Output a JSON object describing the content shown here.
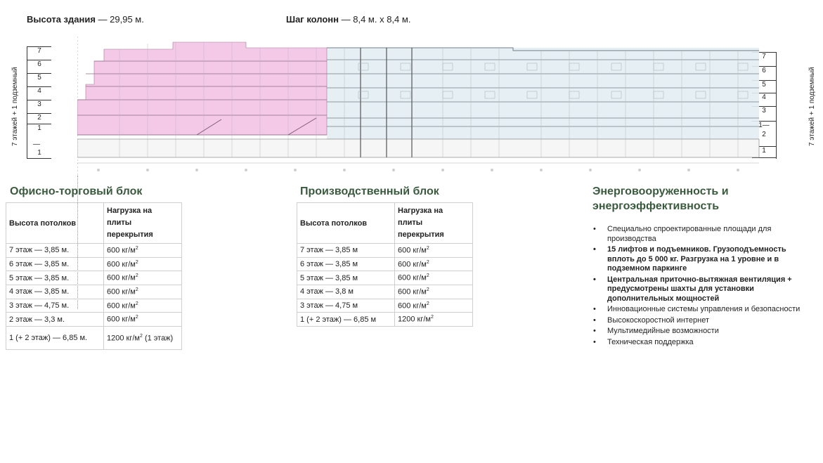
{
  "header": {
    "height_label": "Высота здания",
    "height_value": "— 29,95 м.",
    "column_label": "Шаг колонн",
    "column_value": "— 8,4 м. х 8,4 м."
  },
  "section": {
    "vertical_caption": "7 этажей + 1 подземный",
    "left_floors": [
      "7",
      "6",
      "5",
      "4",
      "3",
      "2",
      "1",
      "—",
      "1"
    ],
    "right_floors": [
      "7",
      "6",
      "5",
      "4",
      "3",
      "1—",
      "2",
      "1"
    ],
    "colors": {
      "office_zone": "#f2c6e6",
      "production_zone": "#dfeaf0",
      "line": "#7a7a7a"
    }
  },
  "office_block": {
    "title": "Офисно-торговый блок",
    "col1_header": "Высота потолков",
    "col2_header": "Нагрузка на плиты перекрытия",
    "rows": [
      {
        "floor": "7 этаж — 3,85 м.",
        "load": "600 кг/м",
        "sup": "2",
        "note": ""
      },
      {
        "floor": "6 этаж — 3,85 м.",
        "load": "600 кг/м",
        "sup": "2",
        "note": ""
      },
      {
        "floor": "5 этаж — 3,85 м.",
        "load": "600 кг/м",
        "sup": "2",
        "note": ""
      },
      {
        "floor": "4 этаж — 3,85 м.",
        "load": "600 кг/м",
        "sup": "2",
        "note": ""
      },
      {
        "floor": "3 этаж — 4,75 м.",
        "load": "600 кг/м",
        "sup": "2",
        "note": ""
      },
      {
        "floor": "2 этаж — 3,3 м.",
        "load": "600 кг/м",
        "sup": "2",
        "note": ""
      },
      {
        "floor": "1 (+ 2 этаж) — 6,85 м.",
        "load": "1200 кг/м",
        "sup": "2",
        "note": " (1 этаж)"
      }
    ]
  },
  "production_block": {
    "title": "Производственный блок",
    "col1_header": "Высота потолков",
    "col2_header": "Нагрузка на плиты перекрытия",
    "rows": [
      {
        "floor": "7 этаж — 3,85 м",
        "load": "600 кг/м",
        "sup": "2"
      },
      {
        "floor": "6 этаж — 3,85 м",
        "load": "600 кг/м",
        "sup": "2"
      },
      {
        "floor": "5 этаж — 3,85 м",
        "load": "600 кг/м",
        "sup": "2"
      },
      {
        "floor": "4 этаж — 3,8 м",
        "load": "600 кг/м",
        "sup": "2"
      },
      {
        "floor": "3 этаж — 4,75 м",
        "load": "600 кг/м",
        "sup": "2"
      },
      {
        "floor": "1 (+ 2 этаж) — 6,85 м",
        "load": "1200 кг/м",
        "sup": "2"
      }
    ]
  },
  "energy": {
    "title_line1": "Энерговооруженность и",
    "title_line2": "энергоэффективность",
    "items": [
      {
        "text": "Специально спроектированные площади для производства",
        "bold": false
      },
      {
        "text": "15 лифтов и подъемников. Грузоподъемность вплоть до 5 000 кг. Разгрузка на 1 уровне и в подземном паркинге",
        "bold": true
      },
      {
        "text": "Центральная приточно-вытяжная вентиляция  + предусмотрены шахты для установки дополнительных мощностей",
        "bold": true
      },
      {
        "text": "Инновационные системы управления и безопасности",
        "bold": false
      },
      {
        "text": "Высокоскоростной интернет",
        "bold": false
      },
      {
        "text": "Мультимедийные возможности",
        "bold": false
      },
      {
        "text": "Техническая поддержка",
        "bold": false
      }
    ]
  }
}
